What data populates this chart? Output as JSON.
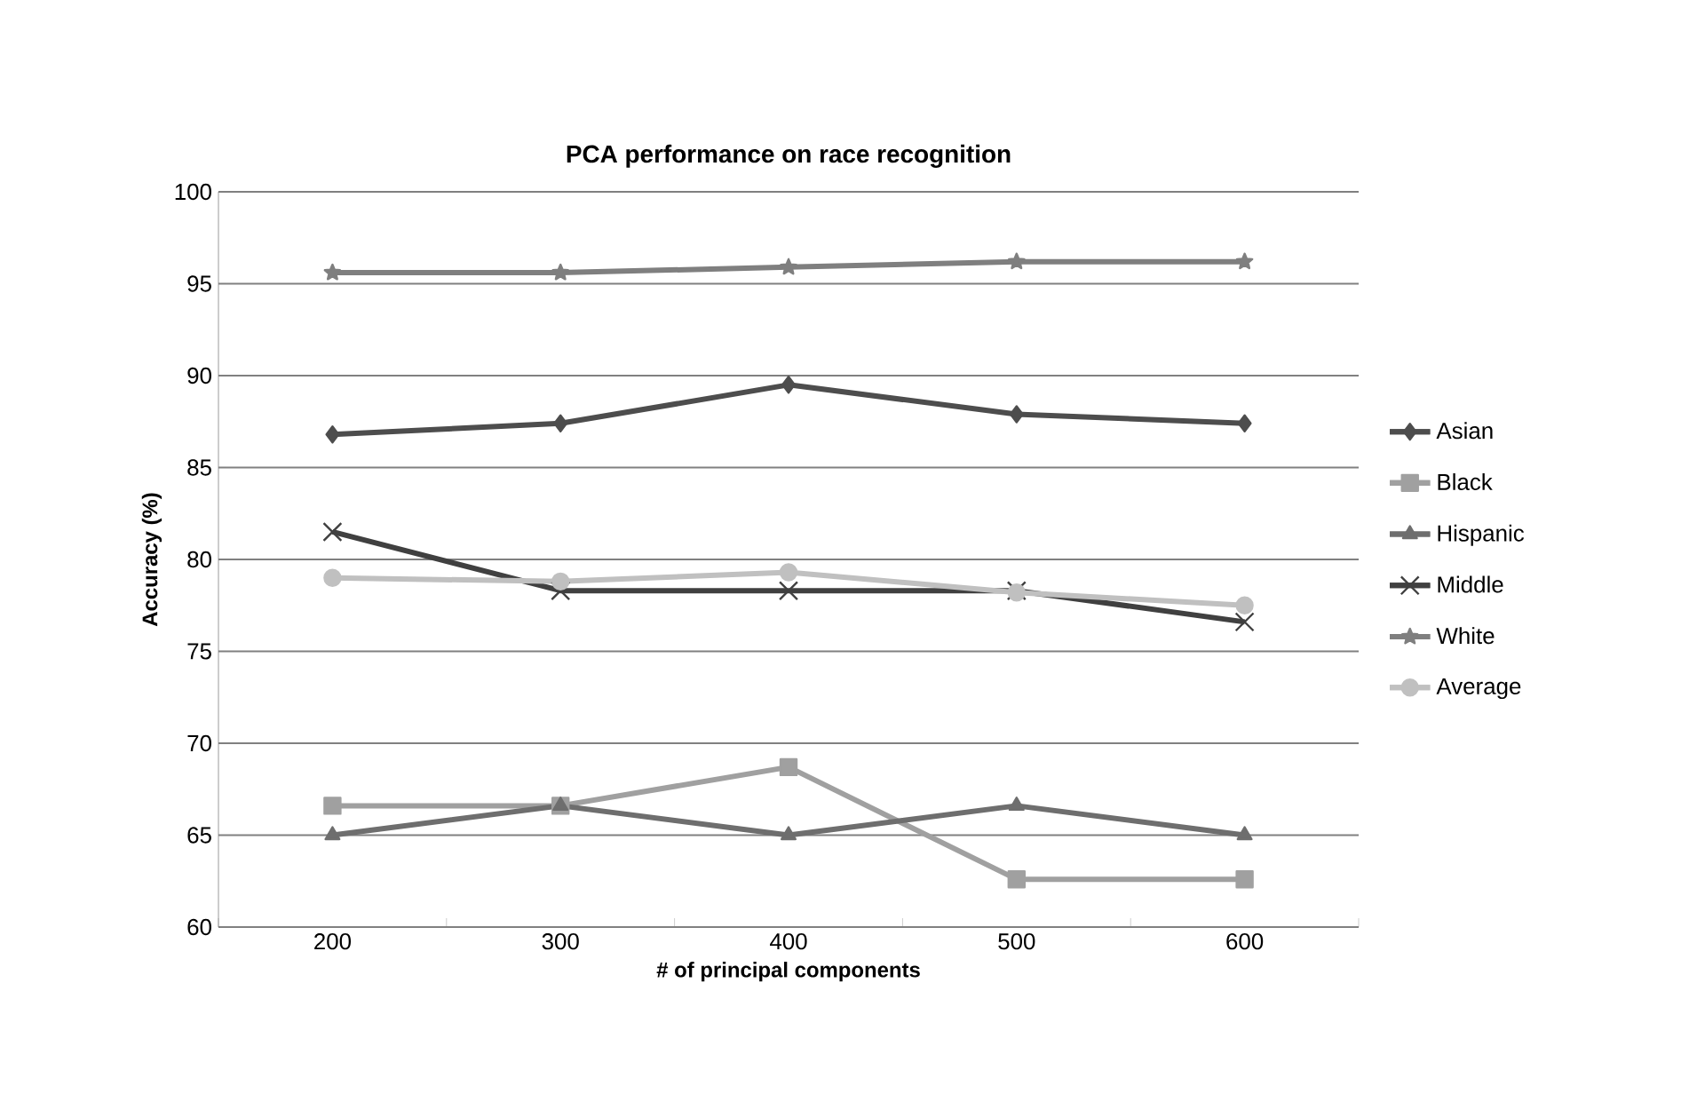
{
  "chart_data": {
    "type": "line",
    "title": "PCA performance on race recognition",
    "xlabel": "# of principal components",
    "ylabel": "Accuracy (%)",
    "categories": [
      "200",
      "300",
      "400",
      "500",
      "600"
    ],
    "series": [
      {
        "name": "Asian",
        "color": "#4d4d4d",
        "marker": "diamond",
        "values": [
          86.8,
          87.4,
          89.5,
          87.9,
          87.4
        ]
      },
      {
        "name": "Black",
        "color": "#a0a0a0",
        "marker": "square",
        "values": [
          66.6,
          66.6,
          68.7,
          62.6,
          62.6
        ]
      },
      {
        "name": "Hispanic",
        "color": "#6e6e6e",
        "marker": "triangle",
        "values": [
          65.0,
          66.6,
          65.0,
          66.6,
          65.0
        ]
      },
      {
        "name": "Middle",
        "color": "#404040",
        "marker": "cross",
        "values": [
          81.5,
          78.3,
          78.3,
          78.3,
          76.6
        ]
      },
      {
        "name": "White",
        "color": "#7f7f7f",
        "marker": "star",
        "values": [
          95.6,
          95.6,
          95.9,
          96.2,
          96.2
        ]
      },
      {
        "name": "Average",
        "color": "#c0c0c0",
        "marker": "circle",
        "values": [
          79.0,
          78.8,
          79.3,
          78.2,
          77.5
        ]
      }
    ],
    "ylim": [
      60,
      100
    ],
    "yticks": [
      60,
      65,
      70,
      75,
      80,
      85,
      90,
      95,
      100
    ],
    "grid": "y",
    "legend": "right"
  }
}
